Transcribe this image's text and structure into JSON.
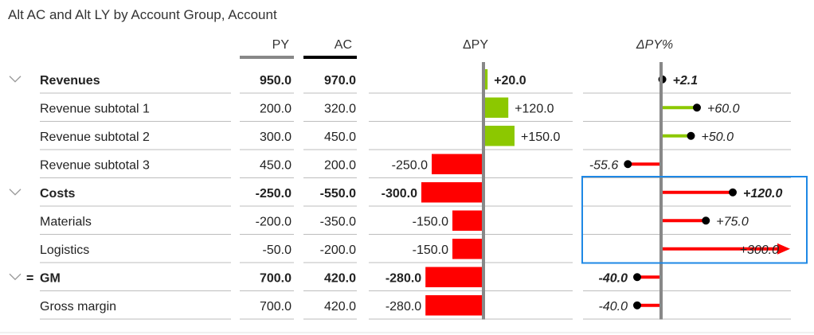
{
  "title": "Alt AC and Alt LY by Account Group, Account",
  "columns": {
    "py": "PY",
    "ac": "AC",
    "dpy": "ΔPY",
    "dpypct": "ΔPY%"
  },
  "colors": {
    "positive": "#8cc800",
    "negative": "#ff0000",
    "axis": "#888888",
    "selection": "#1e88e5",
    "py_bar": "#888888",
    "ac_bar": "#000000"
  },
  "chart_data": {
    "type": "table",
    "rows": [
      {
        "label": "Revenues",
        "bold": true,
        "expand": true,
        "prefix": "",
        "py": "950.0",
        "ac": "970.0",
        "dpy": 20,
        "dpy_label": "+20.0",
        "pct": 2.1,
        "pct_label": "+2.1"
      },
      {
        "label": "Revenue subtotal 1",
        "bold": false,
        "expand": false,
        "prefix": "",
        "py": "200.0",
        "ac": "320.0",
        "dpy": 120,
        "dpy_label": "+120.0",
        "pct": 60,
        "pct_label": "+60.0"
      },
      {
        "label": "Revenue subtotal 2",
        "bold": false,
        "expand": false,
        "prefix": "",
        "py": "300.0",
        "ac": "450.0",
        "dpy": 150,
        "dpy_label": "+150.0",
        "pct": 50,
        "pct_label": "+50.0"
      },
      {
        "label": "Revenue subtotal 3",
        "bold": false,
        "expand": false,
        "prefix": "",
        "py": "450.0",
        "ac": "200.0",
        "dpy": -250,
        "dpy_label": "-250.0",
        "pct": -55.6,
        "pct_label": "-55.6"
      },
      {
        "label": "Costs",
        "bold": true,
        "expand": true,
        "prefix": "",
        "py": "-250.0",
        "ac": "-550.0",
        "dpy": -300,
        "dpy_label": "-300.0",
        "pct": 120,
        "pct_label": "+120.0"
      },
      {
        "label": "Materials",
        "bold": false,
        "expand": false,
        "prefix": "",
        "py": "-200.0",
        "ac": "-350.0",
        "dpy": -150,
        "dpy_label": "-150.0",
        "pct": 75,
        "pct_label": "+75.0"
      },
      {
        "label": "Logistics",
        "bold": false,
        "expand": false,
        "prefix": "",
        "py": "-50.0",
        "ac": "-200.0",
        "dpy": -150,
        "dpy_label": "-150.0",
        "pct": 300,
        "pct_label": "+300.0",
        "pct_clipped": true
      },
      {
        "label": "GM",
        "bold": true,
        "expand": true,
        "prefix": "=",
        "py": "700.0",
        "ac": "420.0",
        "dpy": -280,
        "dpy_label": "-280.0",
        "pct": -40,
        "pct_label": "-40.0"
      },
      {
        "label": "Gross margin",
        "bold": false,
        "expand": false,
        "prefix": "",
        "py": "700.0",
        "ac": "420.0",
        "dpy": -280,
        "dpy_label": "-280.0",
        "pct": -40,
        "pct_label": "-40.0"
      }
    ],
    "pct_axis_max": 120,
    "dpy_axis_max": 300
  }
}
